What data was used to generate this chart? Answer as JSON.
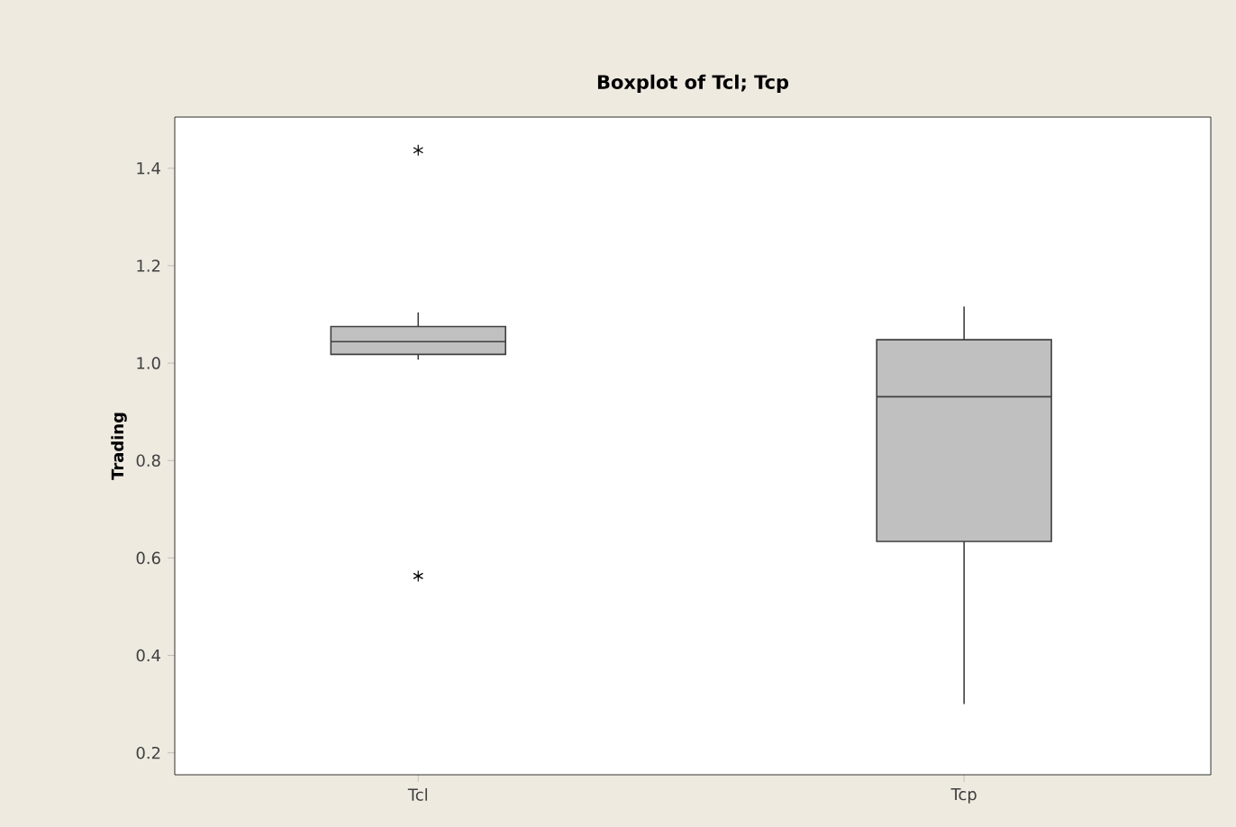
{
  "chart_data": {
    "type": "box",
    "title": "Boxplot of Tcl; Tcp",
    "ylabel": "Trading",
    "categories": [
      "Tcl",
      "Tcp"
    ],
    "boxes": [
      {
        "low": 1.007,
        "q1": 1.018,
        "median": 1.044,
        "q3": 1.075,
        "high": 1.104,
        "outliers": [
          1.437,
          0.563
        ]
      },
      {
        "low": 0.3,
        "q1": 0.634,
        "median": 0.931,
        "q3": 1.048,
        "high": 1.116
      }
    ],
    "color": "#c0c0c0",
    "ylim": [
      0.155,
      1.505
    ],
    "yticks": [
      0.2,
      0.4,
      0.6,
      0.8,
      {
        "value": 1.0,
        "label": "1.0"
      },
      1.2,
      1.4
    ]
  }
}
